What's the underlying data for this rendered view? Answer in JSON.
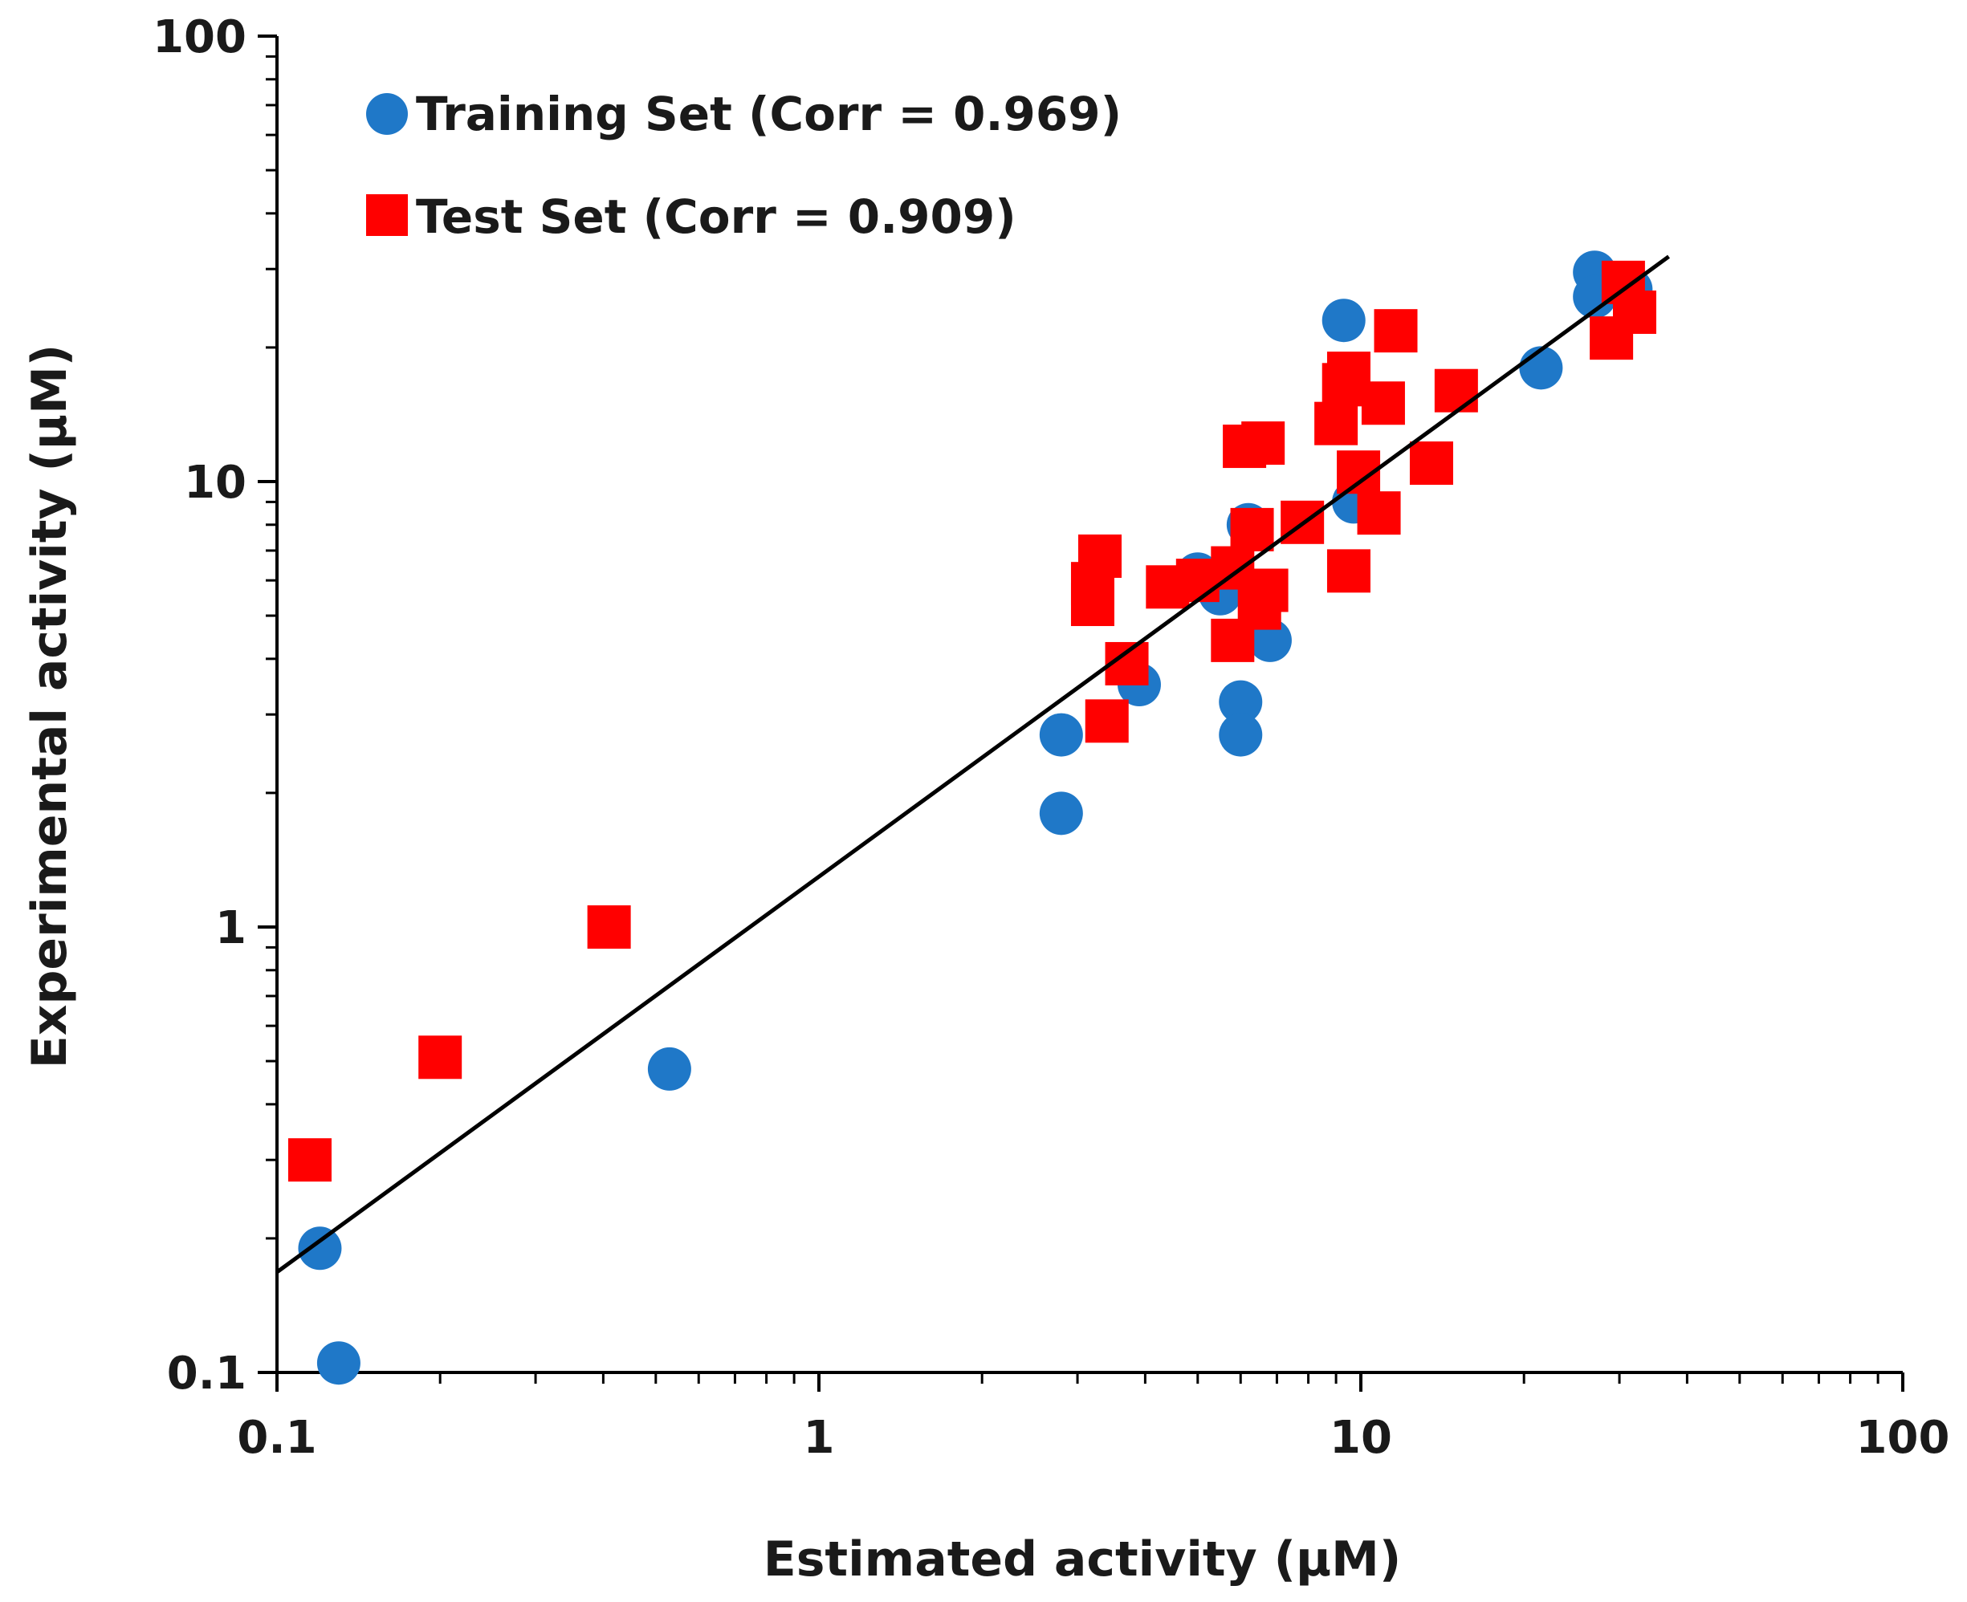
{
  "chart_data": {
    "type": "scatter",
    "title": "",
    "xlabel": "Estimated activity (µM)",
    "ylabel": "Experimental activity (µM)",
    "xscale": "log",
    "yscale": "log",
    "xlim": [
      0.1,
      100
    ],
    "ylim": [
      0.1,
      100
    ],
    "x_major_ticks": [
      0.1,
      1,
      10,
      100
    ],
    "y_major_ticks": [
      0.1,
      1,
      10,
      100
    ],
    "x_tick_labels": [
      "0.1",
      "1",
      "10",
      "100"
    ],
    "y_tick_labels": [
      "0.1",
      "1",
      "10",
      "100"
    ],
    "grid": false,
    "legend_position": "top-left",
    "series": [
      {
        "name": "Training Set (Corr = 0.969)",
        "marker": "circle",
        "color": "#1f78c8",
        "points": [
          [
            0.12,
            0.19
          ],
          [
            0.13,
            0.105
          ],
          [
            0.53,
            0.48
          ],
          [
            2.8,
            1.8
          ],
          [
            2.8,
            2.7
          ],
          [
            3.9,
            3.5
          ],
          [
            5.0,
            6.2
          ],
          [
            5.5,
            5.6
          ],
          [
            6.0,
            3.2
          ],
          [
            6.0,
            2.7
          ],
          [
            6.2,
            8.0
          ],
          [
            6.8,
            4.4
          ],
          [
            9.3,
            23.0
          ],
          [
            9.7,
            9.0
          ],
          [
            21.5,
            18.0
          ],
          [
            27.0,
            29.5
          ],
          [
            27.0,
            26.0
          ],
          [
            31.5,
            27.0
          ]
        ]
      },
      {
        "name": "Test Set (Corr = 0.909)",
        "marker": "square",
        "color": "#ff0000",
        "points": [
          [
            0.115,
            0.3
          ],
          [
            0.2,
            0.51
          ],
          [
            0.41,
            1.0
          ],
          [
            3.3,
            6.8
          ],
          [
            3.2,
            5.9
          ],
          [
            3.2,
            5.3
          ],
          [
            3.4,
            2.9
          ],
          [
            3.7,
            3.9
          ],
          [
            4.4,
            5.8
          ],
          [
            5.0,
            6.0
          ],
          [
            5.8,
            4.4
          ],
          [
            5.8,
            6.4
          ],
          [
            6.1,
            12.0
          ],
          [
            6.6,
            12.2
          ],
          [
            6.3,
            7.8
          ],
          [
            6.5,
            5.2
          ],
          [
            6.7,
            5.7
          ],
          [
            7.8,
            8.1
          ],
          [
            9.0,
            13.5
          ],
          [
            9.3,
            16.5
          ],
          [
            9.5,
            17.5
          ],
          [
            9.5,
            6.3
          ],
          [
            9.9,
            10.5
          ],
          [
            10.8,
            8.5
          ],
          [
            11.0,
            15.0
          ],
          [
            11.6,
            21.8
          ],
          [
            13.5,
            11.0
          ],
          [
            15.0,
            16.0
          ],
          [
            29.0,
            21.0
          ],
          [
            30.5,
            28.0
          ],
          [
            32.0,
            24.0
          ]
        ]
      }
    ],
    "trendline": {
      "type": "linear-fit",
      "color": "#000000",
      "x_range": [
        0.1,
        37
      ],
      "y_range": [
        0.168,
        32
      ]
    }
  }
}
